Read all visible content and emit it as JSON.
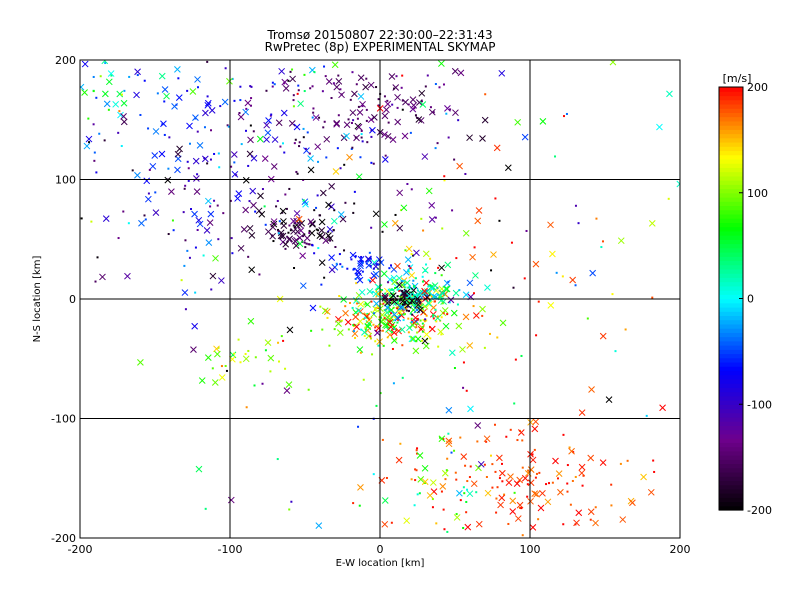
{
  "chart_data": {
    "type": "scatter",
    "title": "Tromsø 20150807 22:30:00–22:31:43",
    "subtitle": "RwPretec (8p) EXPERIMENTAL SKYMAP",
    "xlabel": "E-W location [km]",
    "ylabel": "N-S location [km]",
    "xlim": [
      -200,
      200
    ],
    "ylim": [
      -200,
      200
    ],
    "x_ticks": [
      "-200",
      "-100",
      "0",
      "100",
      "200"
    ],
    "y_ticks": [
      "200",
      "100",
      "0",
      "-100",
      "-200"
    ],
    "grid": true,
    "colorbar": {
      "label": "[m/s]",
      "range": [
        -200,
        200
      ],
      "ticks": [
        "200",
        "100",
        "0",
        "-100",
        "-200"
      ],
      "colormap": "rainbow (black-purple-blue-cyan-green-yellow-red)"
    },
    "markers": [
      "x",
      "dot"
    ],
    "clusters": [
      {
        "x": 10,
        "y": -15,
        "sx": 22,
        "sy": 13,
        "n": 260,
        "v": 120,
        "vs": 60
      },
      {
        "x": 20,
        "y": 5,
        "sx": 18,
        "sy": 10,
        "n": 150,
        "v": 20,
        "vs": 35
      },
      {
        "x": 15,
        "y": 0,
        "sx": 8,
        "sy": 5,
        "n": 40,
        "v": -185,
        "vs": 10
      },
      {
        "x": -10,
        "y": 28,
        "sx": 10,
        "sy": 5,
        "n": 45,
        "v": -60,
        "vs": 15
      },
      {
        "x": -55,
        "y": 55,
        "sx": 15,
        "sy": 9,
        "n": 80,
        "v": -170,
        "vs": 25
      },
      {
        "x": -10,
        "y": 160,
        "sx": 35,
        "sy": 18,
        "n": 120,
        "v": -150,
        "vs": 15
      },
      {
        "x": -130,
        "y": 135,
        "sx": 45,
        "sy": 45,
        "n": 150,
        "v": -60,
        "vs": 35
      },
      {
        "x": -70,
        "y": 90,
        "sx": 60,
        "sy": 50,
        "n": 150,
        "v": -140,
        "vs": 50
      },
      {
        "x": -180,
        "y": 180,
        "sx": 15,
        "sy": 15,
        "n": 25,
        "v": 40,
        "vs": 50
      },
      {
        "x": -90,
        "y": -50,
        "sx": 15,
        "sy": 12,
        "n": 30,
        "v": 100,
        "vs": 30
      },
      {
        "x": 90,
        "y": -150,
        "sx": 50,
        "sy": 25,
        "n": 150,
        "v": 185,
        "vs": 15
      },
      {
        "x": 40,
        "y": -150,
        "sx": 20,
        "sy": 20,
        "n": 40,
        "v": 60,
        "vs": 50
      },
      {
        "x": 0,
        "y": 50,
        "sx": 110,
        "sy": 120,
        "n": 180,
        "v": 0,
        "vs": 130
      },
      {
        "x": 80,
        "y": 30,
        "sx": 60,
        "sy": 50,
        "n": 60,
        "v": 160,
        "vs": 40
      }
    ]
  }
}
